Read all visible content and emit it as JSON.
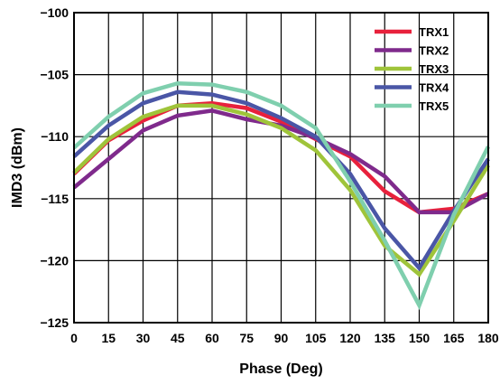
{
  "chart_data": {
    "type": "line",
    "xlabel": "Phase (Deg)",
    "ylabel": "IMD3 (dBm)",
    "xlim": [
      0,
      180
    ],
    "ylim": [
      -125,
      -100
    ],
    "x": [
      0,
      15,
      30,
      45,
      60,
      75,
      90,
      105,
      120,
      135,
      150,
      165,
      180
    ],
    "x_ticks": [
      "0",
      "15",
      "30",
      "45",
      "60",
      "75",
      "90",
      "105",
      "120",
      "135",
      "150",
      "165",
      "180"
    ],
    "y_ticks": [
      "-125",
      "-120",
      "-115",
      "-110",
      "-105",
      "-100"
    ],
    "y_tick_values": [
      -125,
      -120,
      -115,
      -110,
      -105,
      -100
    ],
    "grid": true,
    "legend_position": "top-right",
    "series": [
      {
        "name": "TRX1",
        "color": "#e8213c",
        "values": [
          -113.0,
          -110.3,
          -108.7,
          -107.5,
          -107.3,
          -107.7,
          -108.8,
          -110.2,
          -111.6,
          -114.4,
          -116.1,
          -115.8,
          -114.6
        ]
      },
      {
        "name": "TRX2",
        "color": "#7f2a8c",
        "values": [
          -114.1,
          -111.8,
          -109.5,
          -108.3,
          -107.9,
          -108.6,
          -109.1,
          -110.1,
          -111.4,
          -113.2,
          -116.1,
          -116.1,
          -114.6
        ]
      },
      {
        "name": "TRX3",
        "color": "#9fc43a",
        "values": [
          -112.9,
          -110.2,
          -108.4,
          -107.5,
          -107.5,
          -108.2,
          -109.3,
          -111.1,
          -114.3,
          -118.8,
          -121.1,
          -116.8,
          -112.3
        ]
      },
      {
        "name": "TRX4",
        "color": "#4a56a6",
        "values": [
          -111.6,
          -109.1,
          -107.3,
          -106.4,
          -106.6,
          -107.3,
          -108.5,
          -110.0,
          -113.0,
          -117.4,
          -120.6,
          -116.0,
          -111.8
        ]
      },
      {
        "name": "TRX5",
        "color": "#7fcfae",
        "values": [
          -110.9,
          -108.4,
          -106.5,
          -105.7,
          -105.8,
          -106.4,
          -107.5,
          -109.3,
          -113.6,
          -118.4,
          -123.6,
          -116.3,
          -110.8
        ]
      }
    ]
  }
}
